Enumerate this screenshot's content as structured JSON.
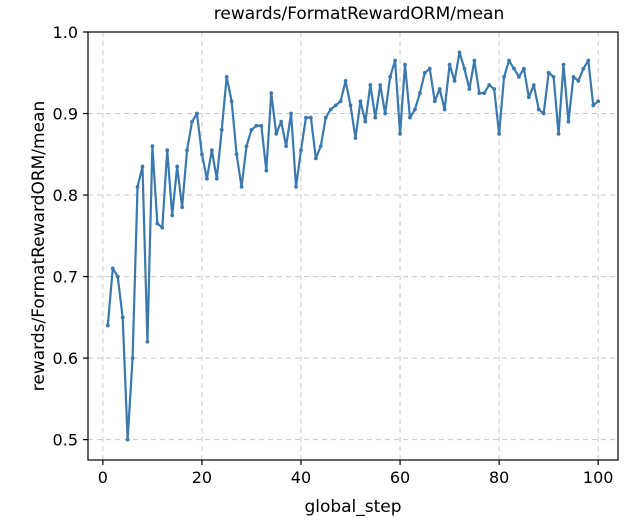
{
  "chart_data": {
    "type": "line",
    "title": "rewards/FormatRewardORM/mean",
    "xlabel": "global_step",
    "ylabel": "rewards/FormatRewardORM/mean",
    "xlim": [
      -3,
      104
    ],
    "ylim": [
      0.475,
      1.0
    ],
    "xticks": [
      0,
      20,
      40,
      60,
      80,
      100
    ],
    "yticks": [
      0.5,
      0.6,
      0.7,
      0.8,
      0.9,
      1.0
    ],
    "xtick_labels": [
      "0",
      "20",
      "40",
      "60",
      "80",
      "100"
    ],
    "ytick_labels": [
      "0.5",
      "0.6",
      "0.7",
      "0.8",
      "0.9",
      "1.0"
    ],
    "grid": true,
    "color": "#3b78ad",
    "series": [
      {
        "x": [
          1,
          2,
          3,
          4,
          5,
          6,
          7,
          8,
          9,
          10,
          11,
          12,
          13,
          14,
          15,
          16,
          17,
          18,
          19,
          20,
          21,
          22,
          23,
          24,
          25,
          26,
          27,
          28,
          29,
          30,
          31,
          32,
          33,
          34,
          35,
          36,
          37,
          38,
          39,
          40,
          41,
          42,
          43,
          44,
          45,
          46,
          47,
          48,
          49,
          50,
          51,
          52,
          53,
          54,
          55,
          56,
          57,
          58,
          59,
          60,
          61,
          62,
          63,
          64,
          65,
          66,
          67,
          68,
          69,
          70,
          71,
          72,
          73,
          74,
          75,
          76,
          77,
          78,
          79,
          80,
          81,
          82,
          83,
          84,
          85,
          86,
          87,
          88,
          89,
          90,
          91,
          92,
          93,
          94,
          95,
          96,
          97,
          98,
          99,
          100
        ],
        "values": [
          0.64,
          0.71,
          0.7,
          0.65,
          0.5,
          0.6,
          0.81,
          0.835,
          0.62,
          0.86,
          0.765,
          0.76,
          0.855,
          0.775,
          0.835,
          0.785,
          0.855,
          0.89,
          0.9,
          0.85,
          0.82,
          0.855,
          0.82,
          0.88,
          0.945,
          0.915,
          0.85,
          0.81,
          0.86,
          0.88,
          0.885,
          0.885,
          0.83,
          0.925,
          0.875,
          0.89,
          0.86,
          0.9,
          0.81,
          0.855,
          0.895,
          0.895,
          0.845,
          0.86,
          0.895,
          0.905,
          0.91,
          0.915,
          0.94,
          0.91,
          0.87,
          0.915,
          0.89,
          0.935,
          0.895,
          0.935,
          0.9,
          0.945,
          0.965,
          0.875,
          0.96,
          0.895,
          0.905,
          0.925,
          0.95,
          0.955,
          0.915,
          0.93,
          0.905,
          0.96,
          0.94,
          0.975,
          0.955,
          0.93,
          0.965,
          0.925,
          0.925,
          0.935,
          0.93,
          0.875,
          0.945,
          0.965,
          0.955,
          0.945,
          0.955,
          0.92,
          0.935,
          0.905,
          0.9,
          0.95,
          0.945,
          0.875,
          0.96,
          0.89,
          0.945,
          0.94,
          0.955,
          0.965,
          0.91,
          0.915
        ]
      }
    ]
  }
}
